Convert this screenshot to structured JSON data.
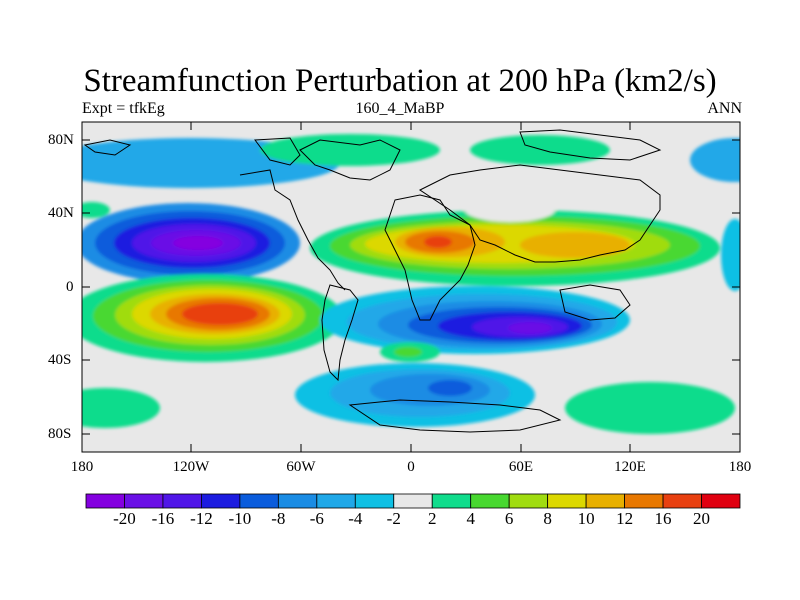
{
  "title": "Streamfunction Perturbation at 200 hPa (km2/s)",
  "subtitle_left": "Expt = tfkEg",
  "subtitle_center": "160_4_MaBP",
  "subtitle_right": "ANN",
  "y_ticks": [
    "80N",
    "40N",
    "0",
    "40S",
    "80S"
  ],
  "x_ticks": [
    "180",
    "120W",
    "60W",
    "0",
    "60E",
    "120E",
    "180"
  ],
  "colorbar": {
    "labels": [
      "-20",
      "-16",
      "-12",
      "-10",
      "-8",
      "-6",
      "-4",
      "-2",
      "2",
      "4",
      "6",
      "8",
      "10",
      "12",
      "16",
      "20"
    ],
    "colors": [
      "#8400e0",
      "#6a10e6",
      "#5016e8",
      "#1c1ce0",
      "#0a5cdc",
      "#1a8ce4",
      "#20a8e8",
      "#10c0e4",
      "#e8e8e8",
      "#10dc8c",
      "#48d830",
      "#a0dc10",
      "#dcd800",
      "#e8b000",
      "#e87800",
      "#e84010",
      "#e00010"
    ]
  },
  "chart_data": {
    "type": "heatmap",
    "variable": "Streamfunction Perturbation at 200 hPa",
    "units": "km2/s",
    "experiment": "tfkEg",
    "case": "160_4_MaBP",
    "season": "ANN",
    "lon_range": [
      -180,
      180
    ],
    "lat_range": [
      -90,
      90
    ],
    "contour_levels": [
      -20,
      -16,
      -12,
      -10,
      -8,
      -6,
      -4,
      -2,
      2,
      4,
      6,
      8,
      10,
      12,
      16,
      20
    ],
    "features": [
      {
        "type": "min",
        "lon": -130,
        "lat": 22,
        "value": -20
      },
      {
        "type": "max",
        "lon": -110,
        "lat": -15,
        "value": 20
      },
      {
        "type": "max",
        "lon": 10,
        "lat": 22,
        "value": 16
      },
      {
        "type": "max",
        "lon": 95,
        "lat": 22,
        "value": 12
      },
      {
        "type": "min",
        "lon": 65,
        "lat": -25,
        "value": -20
      },
      {
        "type": "min",
        "lon": 30,
        "lat": -60,
        "value": -8
      }
    ]
  }
}
